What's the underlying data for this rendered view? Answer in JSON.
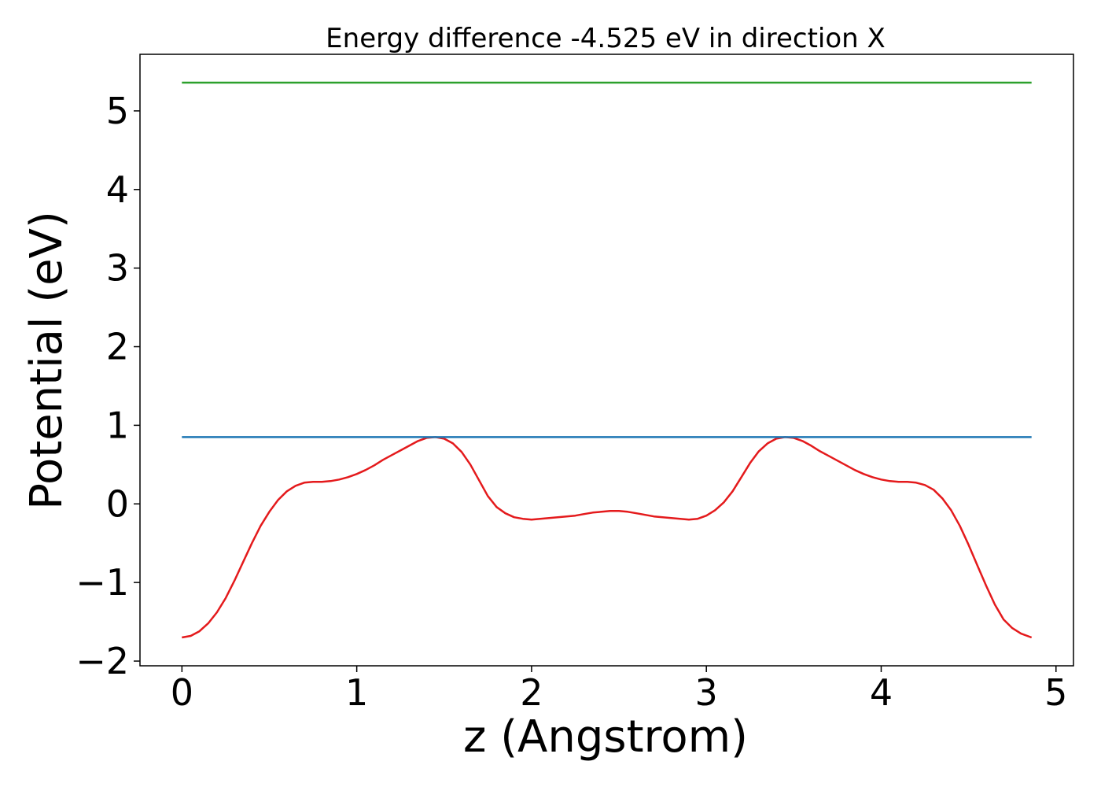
{
  "chart_data": {
    "type": "line",
    "title": "Energy difference -4.525 eV in direction X",
    "xlabel": "z (Angstrom)",
    "ylabel": "Potential (eV)",
    "xlim": [
      -0.24,
      5.1
    ],
    "ylim": [
      -2.06,
      5.72
    ],
    "xticks": [
      0,
      1,
      2,
      3,
      4,
      5
    ],
    "xtick_labels": [
      "0",
      "1",
      "2",
      "3",
      "4",
      "5"
    ],
    "yticks": [
      -2,
      -1,
      0,
      1,
      2,
      3,
      4,
      5
    ],
    "ytick_labels": [
      "−2",
      "−1",
      "0",
      "1",
      "2",
      "3",
      "4",
      "5"
    ],
    "grid": false,
    "legend": "none",
    "series": [
      {
        "color": "#e41a1c",
        "x": [
          0,
          0.05,
          0.1,
          0.15,
          0.2,
          0.25,
          0.3,
          0.35,
          0.4,
          0.45,
          0.5,
          0.55,
          0.6,
          0.65,
          0.7,
          0.75,
          0.8,
          0.85,
          0.9,
          0.95,
          1.0,
          1.05,
          1.1,
          1.15,
          1.2,
          1.25,
          1.3,
          1.35,
          1.4,
          1.45,
          1.5,
          1.55,
          1.6,
          1.65,
          1.7,
          1.75,
          1.8,
          1.85,
          1.9,
          1.95,
          2.0,
          2.05,
          2.1,
          2.15,
          2.2,
          2.25,
          2.3,
          2.35,
          2.4,
          2.45,
          2.5,
          2.55,
          2.6,
          2.65,
          2.7,
          2.75,
          2.8,
          2.85,
          2.9,
          2.95,
          3.0,
          3.05,
          3.1,
          3.15,
          3.2,
          3.25,
          3.3,
          3.35,
          3.4,
          3.45,
          3.5,
          3.55,
          3.6,
          3.65,
          3.7,
          3.75,
          3.8,
          3.85,
          3.9,
          3.95,
          4.0,
          4.05,
          4.1,
          4.15,
          4.2,
          4.25,
          4.3,
          4.35,
          4.4,
          4.45,
          4.5,
          4.55,
          4.6,
          4.65,
          4.7,
          4.75,
          4.8,
          4.86
        ],
        "y": [
          -1.7,
          -1.68,
          -1.62,
          -1.52,
          -1.38,
          -1.2,
          -0.98,
          -0.74,
          -0.5,
          -0.28,
          -0.1,
          0.05,
          0.16,
          0.23,
          0.27,
          0.28,
          0.28,
          0.29,
          0.31,
          0.34,
          0.38,
          0.43,
          0.49,
          0.56,
          0.62,
          0.68,
          0.74,
          0.8,
          0.84,
          0.85,
          0.83,
          0.77,
          0.66,
          0.5,
          0.3,
          0.1,
          -0.04,
          -0.12,
          -0.17,
          -0.19,
          -0.2,
          -0.19,
          -0.18,
          -0.17,
          -0.16,
          -0.15,
          -0.13,
          -0.11,
          -0.1,
          -0.09,
          -0.09,
          -0.1,
          -0.12,
          -0.14,
          -0.16,
          -0.17,
          -0.18,
          -0.19,
          -0.2,
          -0.19,
          -0.15,
          -0.08,
          0.02,
          0.16,
          0.34,
          0.52,
          0.67,
          0.77,
          0.83,
          0.85,
          0.84,
          0.8,
          0.74,
          0.67,
          0.61,
          0.55,
          0.49,
          0.43,
          0.38,
          0.34,
          0.31,
          0.29,
          0.28,
          0.28,
          0.27,
          0.24,
          0.18,
          0.07,
          -0.08,
          -0.28,
          -0.52,
          -0.78,
          -1.04,
          -1.28,
          -1.47,
          -1.58,
          -1.65,
          -1.7
        ]
      },
      {
        "color": "#1f77b4",
        "x": [
          0,
          4.86
        ],
        "y": [
          0.85,
          0.85
        ]
      },
      {
        "color": "#2ca02c",
        "x": [
          0,
          4.86
        ],
        "y": [
          5.36,
          5.36
        ]
      }
    ]
  }
}
